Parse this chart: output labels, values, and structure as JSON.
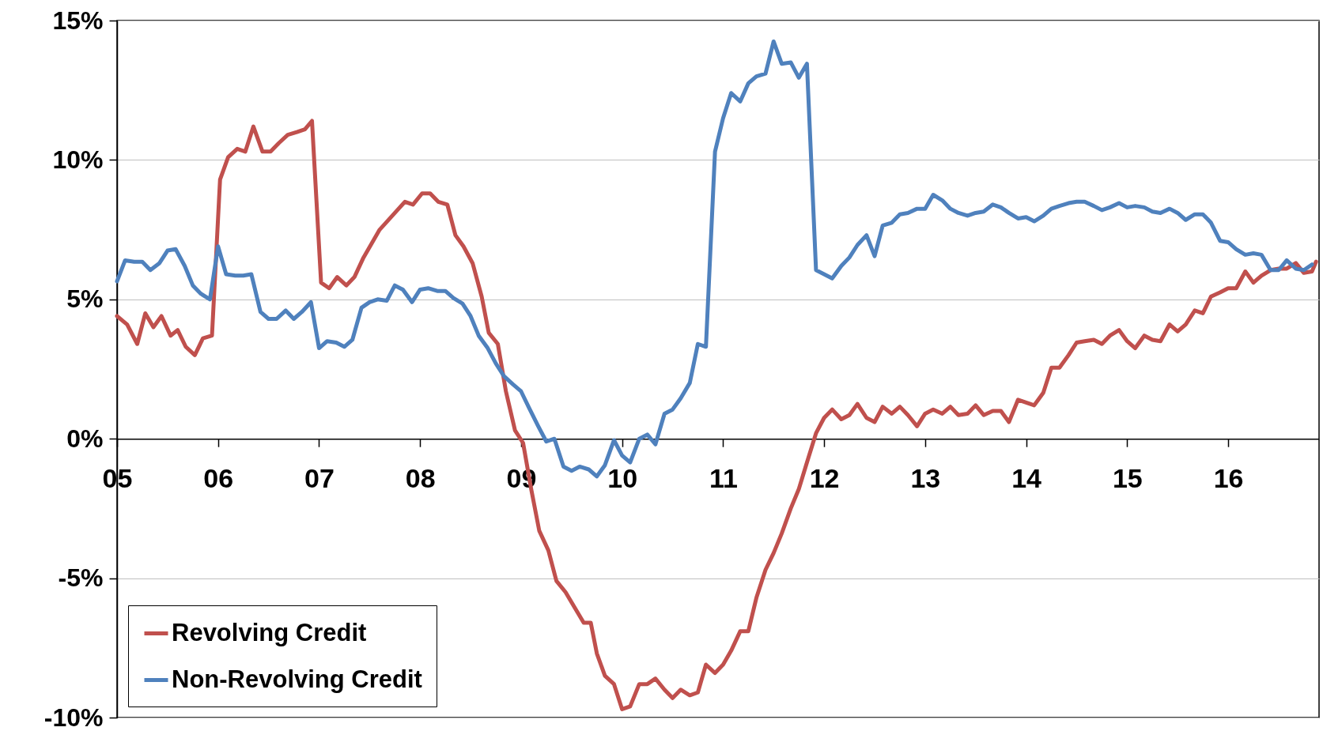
{
  "chart_data": {
    "type": "line",
    "xlim": [
      2005,
      2016.9
    ],
    "ylim": [
      -10,
      15
    ],
    "xticks": [
      {
        "value": 2005,
        "label": "05"
      },
      {
        "value": 2006,
        "label": "06"
      },
      {
        "value": 2007,
        "label": "07"
      },
      {
        "value": 2008,
        "label": "08"
      },
      {
        "value": 2009,
        "label": "09"
      },
      {
        "value": 2010,
        "label": "10"
      },
      {
        "value": 2011,
        "label": "11"
      },
      {
        "value": 2012,
        "label": "12"
      },
      {
        "value": 2013,
        "label": "13"
      },
      {
        "value": 2014,
        "label": "14"
      },
      {
        "value": 2015,
        "label": "15"
      },
      {
        "value": 2016,
        "label": "16"
      }
    ],
    "yticks": [
      {
        "value": -10,
        "label": "-10%"
      },
      {
        "value": -5,
        "label": "-5%"
      },
      {
        "value": 0,
        "label": "0%"
      },
      {
        "value": 5,
        "label": "5%"
      },
      {
        "value": 10,
        "label": "10%"
      },
      {
        "value": 15,
        "label": "15%"
      }
    ],
    "grid": "y",
    "legend": "bottom left",
    "line_style": "solid",
    "marker": "none",
    "series": [
      {
        "name": "Revolving Credit",
        "color": "#c0504d",
        "x": [
          2005.0,
          2005.1,
          2005.2,
          2005.28,
          2005.36,
          2005.44,
          2005.53,
          2005.6,
          2005.68,
          2005.77,
          2005.85,
          2005.94,
          2006.02,
          2006.1,
          2006.19,
          2006.27,
          2006.35,
          2006.44,
          2006.52,
          2006.6,
          2006.69,
          2006.78,
          2006.86,
          2006.93,
          2007.02,
          2007.1,
          2007.18,
          2007.27,
          2007.35,
          2007.44,
          2007.6,
          2007.85,
          2007.93,
          2008.02,
          2008.1,
          2008.18,
          2008.27,
          2008.35,
          2008.43,
          2008.52,
          2008.61,
          2008.68,
          2008.77,
          2008.85,
          2008.94,
          2009.02,
          2009.1,
          2009.18,
          2009.27,
          2009.35,
          2009.44,
          2009.62,
          2009.69,
          2009.75,
          2009.83,
          2009.92,
          2010.0,
          2010.08,
          2010.17,
          2010.25,
          2010.33,
          2010.42,
          2010.5,
          2010.58,
          2010.67,
          2010.75,
          2010.83,
          2010.92,
          2011.0,
          2011.08,
          2011.17,
          2011.25,
          2011.33,
          2011.42,
          2011.5,
          2011.58,
          2011.67,
          2011.75,
          2011.83,
          2011.92,
          2012.0,
          2012.08,
          2012.17,
          2012.25,
          2012.33,
          2012.42,
          2012.5,
          2012.58,
          2012.67,
          2012.75,
          2012.83,
          2012.92,
          2013.0,
          2013.08,
          2013.17,
          2013.25,
          2013.33,
          2013.42,
          2013.5,
          2013.58,
          2013.67,
          2013.75,
          2013.83,
          2013.92,
          2014.0,
          2014.08,
          2014.17,
          2014.25,
          2014.33,
          2014.42,
          2014.5,
          2014.58,
          2014.67,
          2014.75,
          2014.83,
          2014.92,
          2015.0,
          2015.08,
          2015.17,
          2015.25,
          2015.33,
          2015.42,
          2015.5,
          2015.58,
          2015.67,
          2015.75,
          2015.83,
          2015.92,
          2016.0,
          2016.08,
          2016.17,
          2016.25,
          2016.33,
          2016.42,
          2016.5,
          2016.58,
          2016.67,
          2016.75,
          2016.83,
          2016.87
        ],
        "values": [
          4.4,
          4.1,
          3.4,
          4.5,
          4.0,
          4.4,
          3.7,
          3.9,
          3.3,
          3.0,
          3.6,
          3.7,
          9.3,
          10.1,
          10.4,
          10.3,
          11.2,
          10.3,
          10.3,
          10.6,
          10.9,
          11.0,
          11.1,
          11.4,
          5.6,
          5.4,
          5.8,
          5.5,
          5.8,
          6.5,
          7.5,
          8.5,
          8.4,
          8.8,
          8.8,
          8.5,
          8.4,
          7.3,
          6.9,
          6.3,
          5.1,
          3.8,
          3.4,
          1.7,
          0.3,
          -0.15,
          -1.8,
          -3.3,
          -4.0,
          -5.1,
          -5.5,
          -6.6,
          -6.6,
          -7.7,
          -8.5,
          -8.8,
          -9.7,
          -9.6,
          -8.8,
          -8.8,
          -8.6,
          -9.0,
          -9.3,
          -9.0,
          -9.2,
          -9.1,
          -8.1,
          -8.4,
          -8.1,
          -7.6,
          -6.9,
          -6.9,
          -5.7,
          -4.7,
          -4.1,
          -3.4,
          -2.5,
          -1.8,
          -0.85,
          0.2,
          0.75,
          1.05,
          0.7,
          0.85,
          1.25,
          0.75,
          0.6,
          1.15,
          0.9,
          1.15,
          0.85,
          0.45,
          0.9,
          1.05,
          0.9,
          1.15,
          0.85,
          0.9,
          1.2,
          0.85,
          1.0,
          1.0,
          0.6,
          1.4,
          1.3,
          1.2,
          1.65,
          2.55,
          2.55,
          3.0,
          3.45,
          3.5,
          3.55,
          3.4,
          3.7,
          3.9,
          3.5,
          3.25,
          3.7,
          3.55,
          3.5,
          4.1,
          3.85,
          4.1,
          4.6,
          4.5,
          5.1,
          5.25,
          5.4,
          5.4,
          6.0,
          5.6,
          5.85,
          6.05,
          6.1,
          6.1,
          6.3,
          5.95,
          6.0,
          6.35
        ]
      },
      {
        "name": "Non-Revolving Credit",
        "color": "#4f81bd",
        "x": [
          2005.0,
          2005.08,
          2005.17,
          2005.25,
          2005.33,
          2005.42,
          2005.5,
          2005.58,
          2005.67,
          2005.75,
          2005.83,
          2005.92,
          2006.0,
          2006.08,
          2006.17,
          2006.25,
          2006.33,
          2006.42,
          2006.5,
          2006.58,
          2006.67,
          2006.75,
          2006.83,
          2006.92,
          2007.0,
          2007.08,
          2007.17,
          2007.25,
          2007.33,
          2007.42,
          2007.5,
          2007.58,
          2007.67,
          2007.75,
          2007.83,
          2007.92,
          2008.0,
          2008.08,
          2008.17,
          2008.25,
          2008.33,
          2008.42,
          2008.5,
          2008.58,
          2008.67,
          2008.75,
          2008.83,
          2008.92,
          2009.0,
          2009.08,
          2009.17,
          2009.25,
          2009.33,
          2009.42,
          2009.5,
          2009.58,
          2009.67,
          2009.75,
          2009.83,
          2009.92,
          2010.0,
          2010.08,
          2010.17,
          2010.25,
          2010.33,
          2010.42,
          2010.5,
          2010.58,
          2010.67,
          2010.75,
          2010.83,
          2010.92,
          2011.0,
          2011.08,
          2011.17,
          2011.25,
          2011.33,
          2011.42,
          2011.5,
          2011.58,
          2011.67,
          2011.75,
          2011.83,
          2011.92,
          2012.0,
          2012.08,
          2012.17,
          2012.25,
          2012.33,
          2012.42,
          2012.5,
          2012.58,
          2012.67,
          2012.75,
          2012.83,
          2012.92,
          2013.0,
          2013.08,
          2013.17,
          2013.25,
          2013.33,
          2013.42,
          2013.5,
          2013.58,
          2013.67,
          2013.75,
          2013.83,
          2013.92,
          2014.0,
          2014.08,
          2014.17,
          2014.25,
          2014.33,
          2014.42,
          2014.5,
          2014.58,
          2014.67,
          2014.75,
          2014.83,
          2014.92,
          2015.0,
          2015.08,
          2015.17,
          2015.25,
          2015.33,
          2015.42,
          2015.5,
          2015.58,
          2015.67,
          2015.75,
          2015.83,
          2015.92,
          2016.0,
          2016.08,
          2016.17,
          2016.25,
          2016.33,
          2016.42,
          2016.5,
          2016.58,
          2016.67,
          2016.75,
          2016.83
        ],
        "values": [
          5.65,
          6.4,
          6.35,
          6.35,
          6.05,
          6.3,
          6.75,
          6.8,
          6.2,
          5.5,
          5.2,
          5.0,
          6.9,
          5.9,
          5.85,
          5.85,
          5.9,
          4.55,
          4.3,
          4.3,
          4.6,
          4.3,
          4.55,
          4.9,
          3.25,
          3.5,
          3.45,
          3.3,
          3.55,
          4.7,
          4.9,
          5.0,
          4.95,
          5.5,
          5.35,
          4.9,
          5.35,
          5.4,
          5.3,
          5.3,
          5.05,
          4.85,
          4.4,
          3.7,
          3.25,
          2.7,
          2.25,
          1.95,
          1.7,
          1.1,
          0.45,
          -0.1,
          0.0,
          -1.0,
          -1.15,
          -1.0,
          -1.1,
          -1.35,
          -0.95,
          -0.05,
          -0.6,
          -0.85,
          0.0,
          0.15,
          -0.2,
          0.9,
          1.05,
          1.45,
          2.0,
          3.4,
          3.3,
          10.3,
          11.5,
          12.4,
          12.1,
          12.75,
          13.0,
          13.1,
          14.25,
          13.45,
          13.5,
          12.95,
          13.45,
          6.05,
          5.9,
          5.75,
          6.2,
          6.5,
          6.95,
          7.3,
          6.55,
          7.65,
          7.75,
          8.05,
          8.1,
          8.25,
          8.25,
          8.75,
          8.55,
          8.25,
          8.1,
          8.0,
          8.1,
          8.15,
          8.4,
          8.3,
          8.1,
          7.9,
          7.95,
          7.8,
          8.0,
          8.25,
          8.35,
          8.45,
          8.5,
          8.5,
          8.35,
          8.2,
          8.3,
          8.45,
          8.3,
          8.35,
          8.3,
          8.15,
          8.1,
          8.25,
          8.1,
          7.85,
          8.05,
          8.05,
          7.75,
          7.1,
          7.05,
          6.8,
          6.6,
          6.65,
          6.6,
          6.05,
          6.05,
          6.4,
          6.1,
          6.05,
          6.25
        ]
      }
    ]
  }
}
